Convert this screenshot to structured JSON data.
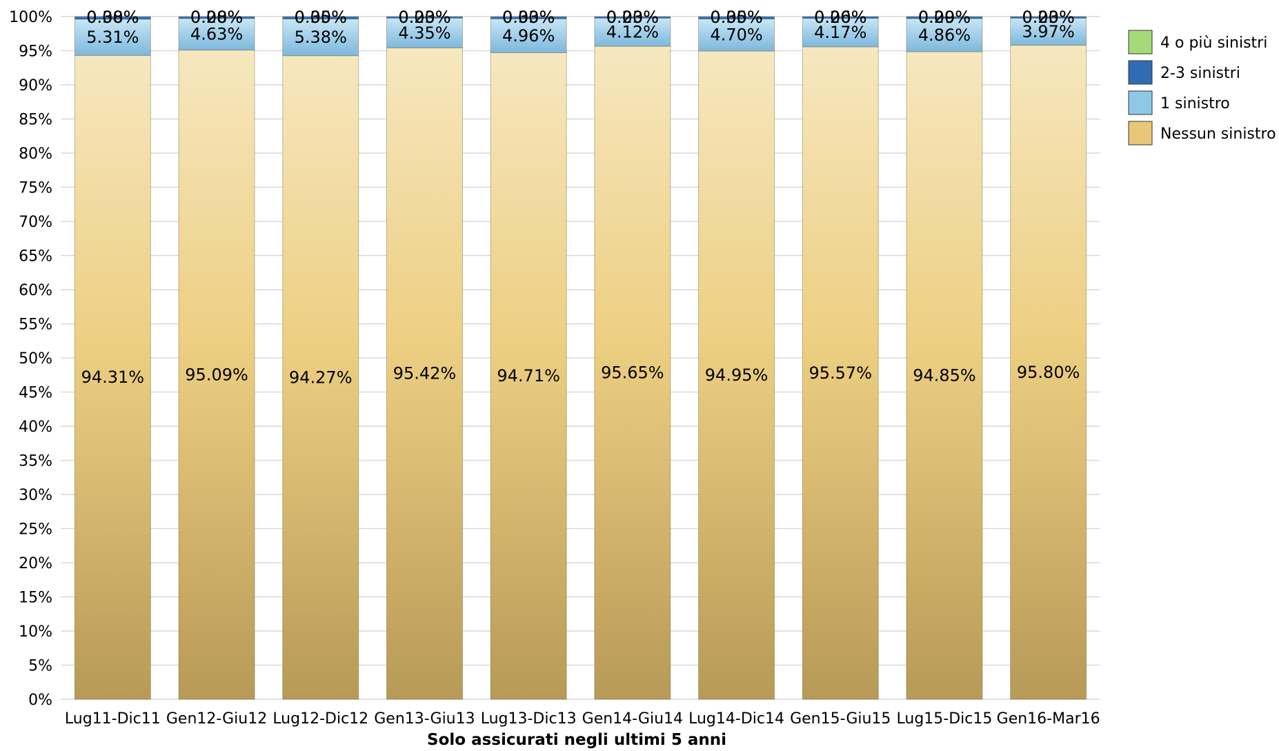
{
  "chart_data": {
    "type": "bar",
    "stacked": true,
    "title": "",
    "xlabel": "Solo assicurati negli ultimi 5 anni",
    "ylabel": "",
    "ylim": [
      0,
      100
    ],
    "yticks": [
      "0%",
      "5%",
      "10%",
      "15%",
      "20%",
      "25%",
      "30%",
      "35%",
      "40%",
      "45%",
      "50%",
      "55%",
      "60%",
      "65%",
      "70%",
      "75%",
      "80%",
      "85%",
      "90%",
      "95%",
      "100%"
    ],
    "grid": true,
    "legend_position": "right",
    "categories": [
      "Lug11-Dic11",
      "Gen12-Giu12",
      "Lug12-Dic12",
      "Gen13-Giu13",
      "Lug13-Dic13",
      "Gen14-Giu14",
      "Lug14-Dic14",
      "Gen15-Giu15",
      "Lug15-Dic15",
      "Gen16-Mar16"
    ],
    "series": [
      {
        "name": "Nessun sinistro",
        "color": "#E8C878",
        "values": [
          94.31,
          95.09,
          94.27,
          95.42,
          94.71,
          95.65,
          94.95,
          95.57,
          94.85,
          95.8
        ],
        "labels": [
          "94.31%",
          "95.09%",
          "94.27%",
          "95.42%",
          "94.71%",
          "95.65%",
          "94.95%",
          "95.57%",
          "94.85%",
          "95.80%"
        ]
      },
      {
        "name": "1 sinistro",
        "color": "#8EC8E6",
        "values": [
          5.31,
          4.63,
          5.38,
          4.35,
          4.96,
          4.12,
          4.7,
          4.17,
          4.86,
          3.97
        ],
        "labels": [
          "5.31%",
          "4.63%",
          "5.38%",
          "4.35%",
          "4.96%",
          "4.12%",
          "4.70%",
          "4.17%",
          "4.86%",
          "3.97%"
        ]
      },
      {
        "name": "2-3 sinistri",
        "color": "#2E6DB4",
        "values": [
          0.38,
          0.28,
          0.35,
          0.23,
          0.33,
          0.23,
          0.35,
          0.26,
          0.29,
          0.23
        ],
        "labels": [
          "0.38%",
          "0.28%",
          "0.35%",
          "0.23%",
          "0.33%",
          "0.23%",
          "0.35%",
          "0.26%",
          "0.29%",
          "0.23%"
        ]
      },
      {
        "name": "4 o più sinistri",
        "color": "#A6D97A",
        "values": [
          0.0,
          0.0,
          0.0,
          0.0,
          0.0,
          0.0,
          0.0,
          0.0,
          0.0,
          0.0
        ],
        "labels": [
          "0.00%",
          "0.00%",
          "0.00%",
          "0.00%",
          "0.00%",
          "0.00%",
          "0.00%",
          "0.00%",
          "0.00%",
          "0.00%"
        ]
      }
    ],
    "legend_order": [
      "4 o più sinistri",
      "2-3 sinistri",
      "1 sinistro",
      "Nessun sinistro"
    ]
  }
}
